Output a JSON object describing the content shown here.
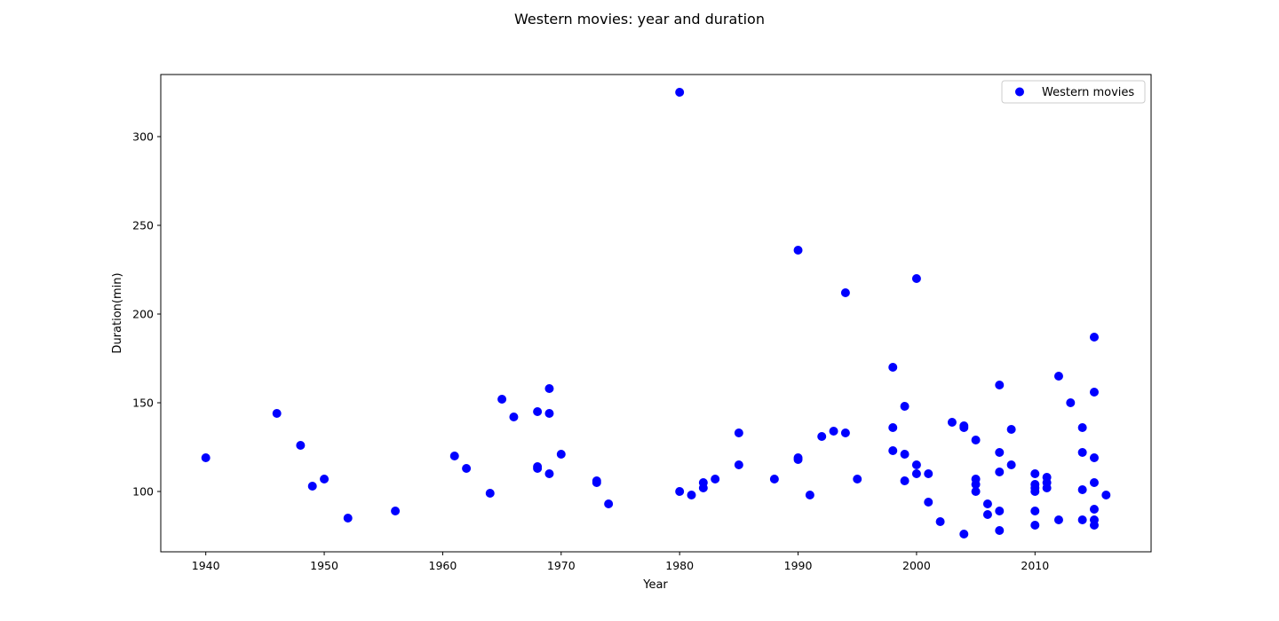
{
  "chart_data": {
    "type": "scatter",
    "title": "Western movies: year and duration",
    "xlabel": "Year",
    "ylabel": "Duration(min)",
    "xlim": [
      1936.2,
      2019.8
    ],
    "ylim": [
      66,
      335
    ],
    "xticks": [
      1940,
      1950,
      1960,
      1970,
      1980,
      1990,
      2000,
      2010
    ],
    "yticks": [
      100,
      150,
      200,
      250,
      300
    ],
    "grid": false,
    "legend_position": "top-right",
    "series": [
      {
        "name": "Western movies",
        "color": "#0000ff",
        "points": [
          [
            1940,
            119
          ],
          [
            1946,
            144
          ],
          [
            1948,
            126
          ],
          [
            1949,
            103
          ],
          [
            1950,
            107
          ],
          [
            1952,
            85
          ],
          [
            1956,
            89
          ],
          [
            1961,
            120
          ],
          [
            1962,
            113
          ],
          [
            1964,
            99
          ],
          [
            1965,
            152
          ],
          [
            1966,
            142
          ],
          [
            1968,
            145
          ],
          [
            1968,
            114
          ],
          [
            1968,
            113
          ],
          [
            1969,
            158
          ],
          [
            1969,
            144
          ],
          [
            1969,
            110
          ],
          [
            1970,
            121
          ],
          [
            1973,
            106
          ],
          [
            1973,
            105
          ],
          [
            1974,
            93
          ],
          [
            1980,
            325
          ],
          [
            1980,
            100
          ],
          [
            1981,
            98
          ],
          [
            1982,
            105
          ],
          [
            1982,
            102
          ],
          [
            1983,
            107
          ],
          [
            1985,
            133
          ],
          [
            1985,
            115
          ],
          [
            1988,
            107
          ],
          [
            1990,
            236
          ],
          [
            1990,
            119
          ],
          [
            1990,
            118
          ],
          [
            1991,
            98
          ],
          [
            1992,
            131
          ],
          [
            1993,
            134
          ],
          [
            1994,
            212
          ],
          [
            1994,
            133
          ],
          [
            1995,
            107
          ],
          [
            1998,
            170
          ],
          [
            1998,
            136
          ],
          [
            1998,
            123
          ],
          [
            1999,
            148
          ],
          [
            1999,
            121
          ],
          [
            1999,
            106
          ],
          [
            2000,
            220
          ],
          [
            2000,
            115
          ],
          [
            2000,
            110
          ],
          [
            2001,
            110
          ],
          [
            2001,
            94
          ],
          [
            2002,
            83
          ],
          [
            2003,
            139
          ],
          [
            2004,
            137
          ],
          [
            2004,
            136
          ],
          [
            2004,
            76
          ],
          [
            2005,
            129
          ],
          [
            2005,
            107
          ],
          [
            2005,
            104
          ],
          [
            2005,
            100
          ],
          [
            2006,
            93
          ],
          [
            2006,
            87
          ],
          [
            2007,
            160
          ],
          [
            2007,
            122
          ],
          [
            2007,
            111
          ],
          [
            2007,
            89
          ],
          [
            2007,
            78
          ],
          [
            2008,
            135
          ],
          [
            2008,
            115
          ],
          [
            2010,
            110
          ],
          [
            2010,
            104
          ],
          [
            2010,
            102
          ],
          [
            2010,
            100
          ],
          [
            2010,
            89
          ],
          [
            2010,
            81
          ],
          [
            2011,
            108
          ],
          [
            2011,
            105
          ],
          [
            2011,
            102
          ],
          [
            2012,
            165
          ],
          [
            2012,
            84
          ],
          [
            2013,
            150
          ],
          [
            2014,
            136
          ],
          [
            2014,
            122
          ],
          [
            2014,
            101
          ],
          [
            2014,
            84
          ],
          [
            2015,
            187
          ],
          [
            2015,
            156
          ],
          [
            2015,
            119
          ],
          [
            2015,
            105
          ],
          [
            2015,
            90
          ],
          [
            2015,
            84
          ],
          [
            2015,
            81
          ],
          [
            2016,
            98
          ]
        ]
      }
    ]
  }
}
